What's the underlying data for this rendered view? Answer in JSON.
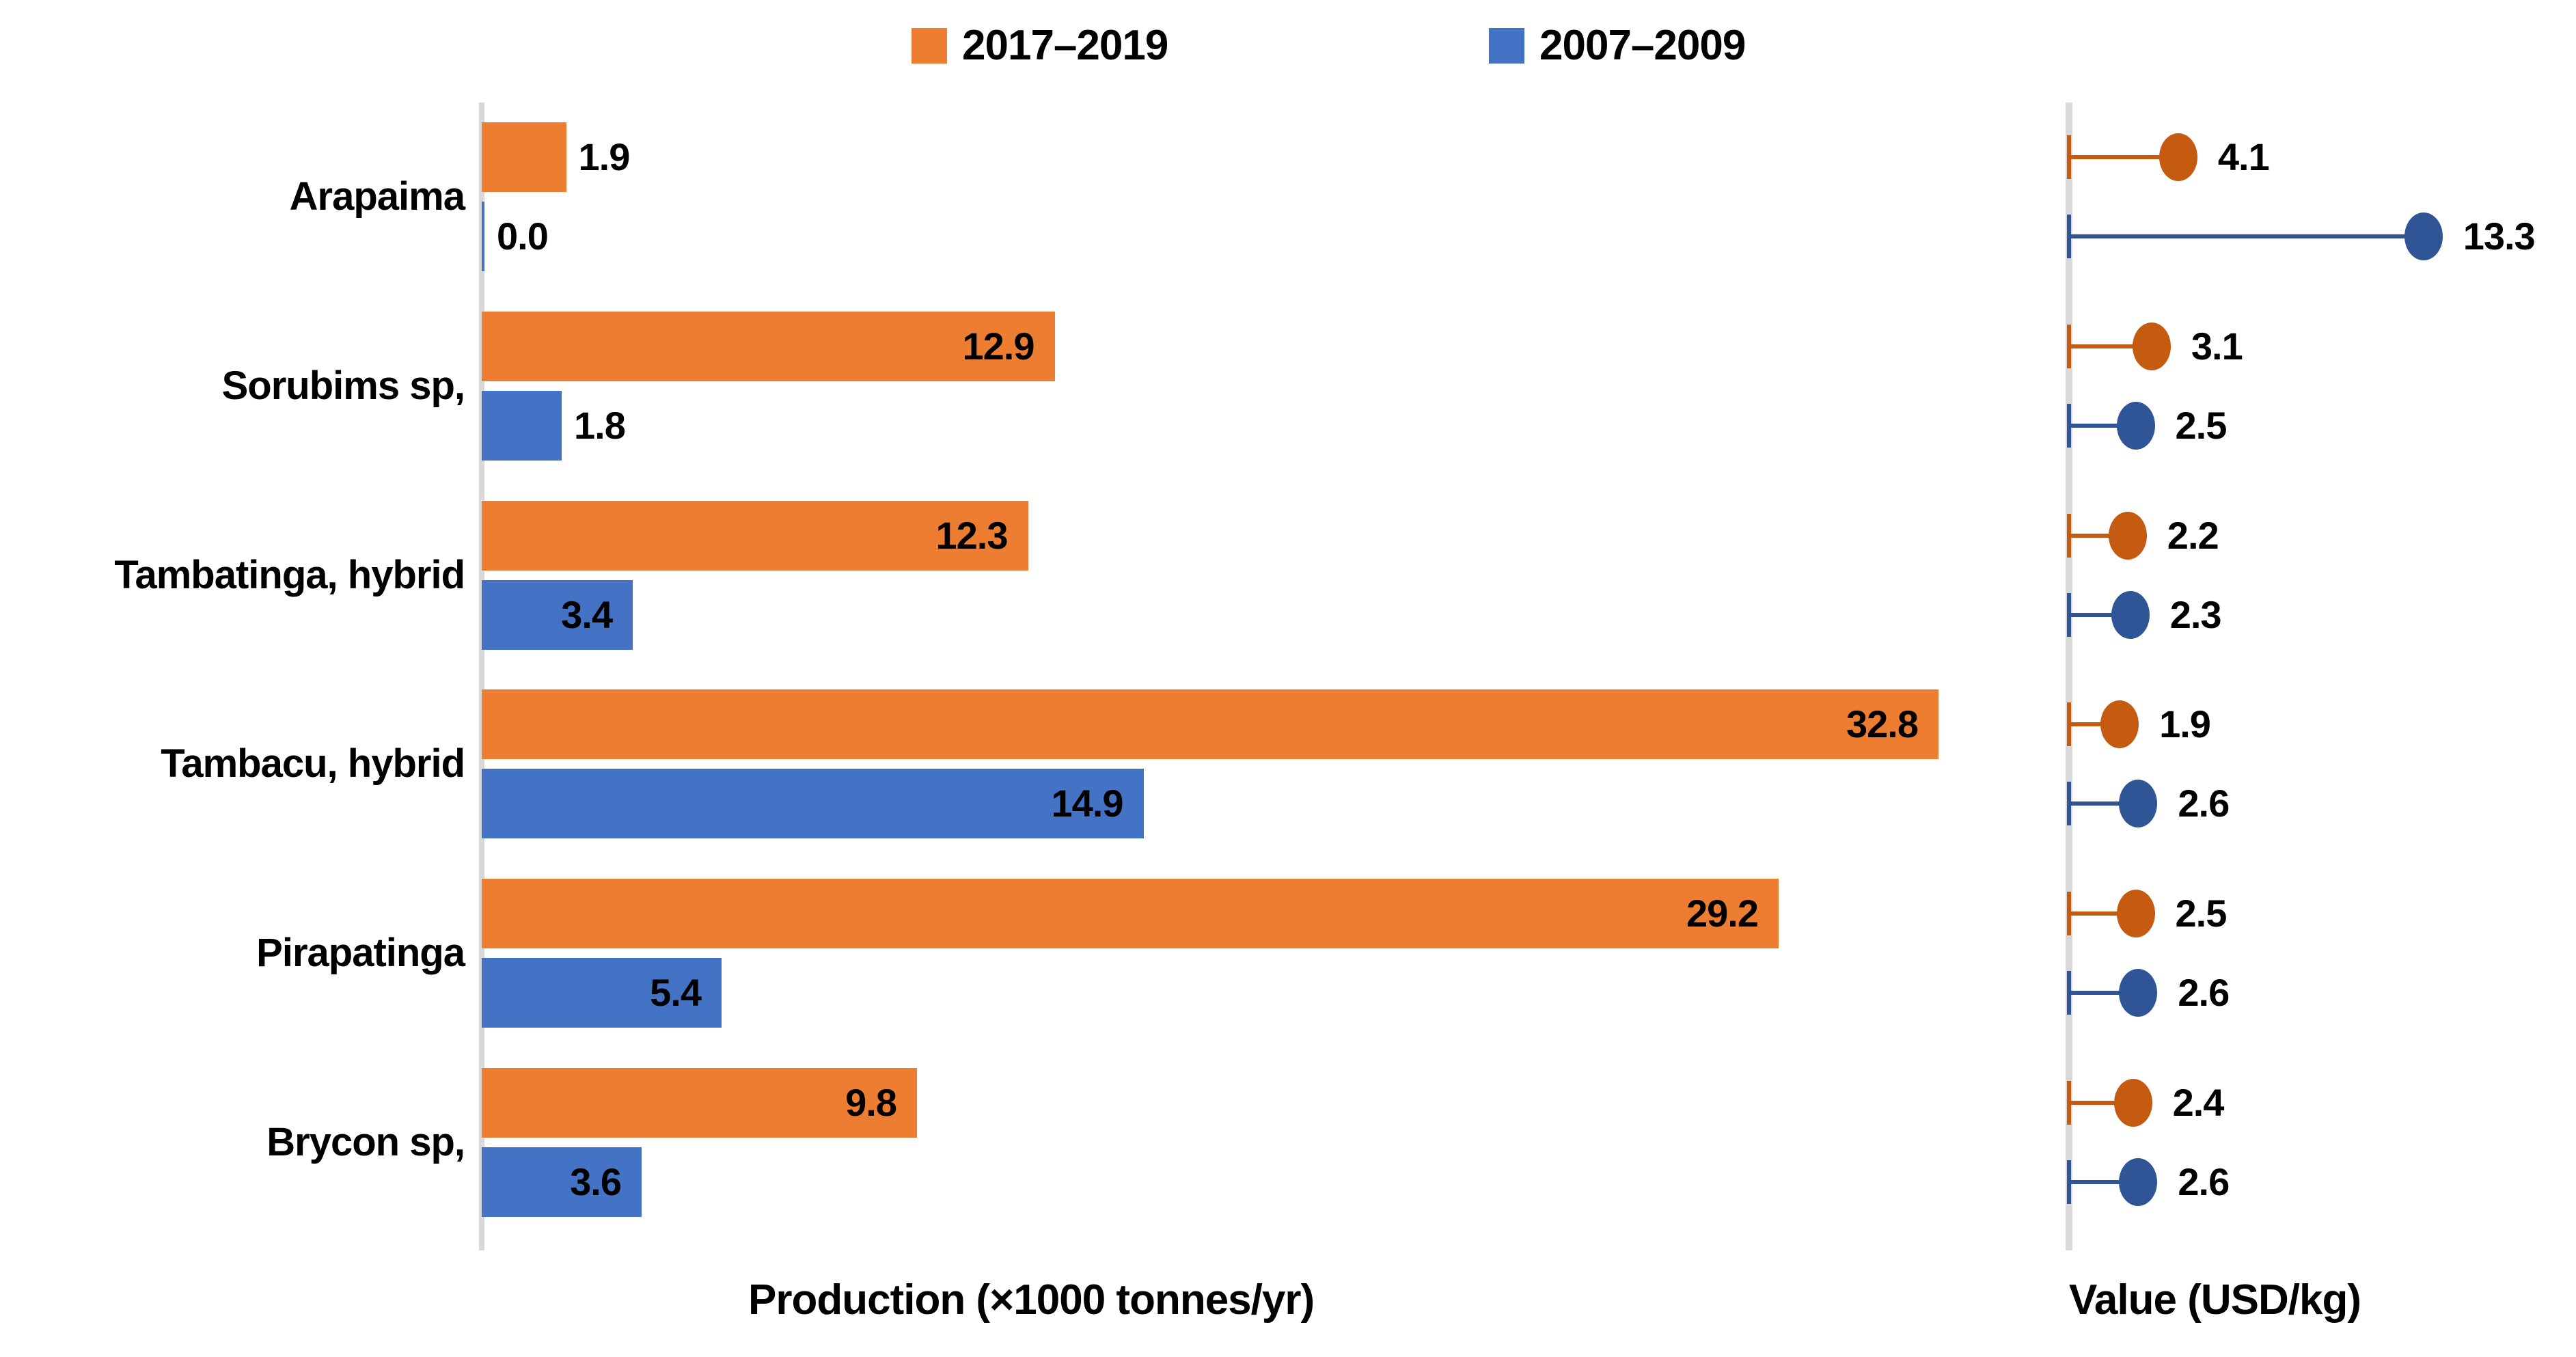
{
  "legend": {
    "items": [
      {
        "label": "2017–2019",
        "color": "#ED7D31"
      },
      {
        "label": "2007–2009",
        "color": "#4472C4"
      }
    ]
  },
  "chart_data": [
    {
      "type": "bar",
      "orientation": "horizontal",
      "title": "",
      "categories": [
        "Arapaima",
        "Sorubims sp,",
        "Tambatinga, hybrid",
        "Tambacu, hybrid",
        "Pirapatinga",
        "Brycon sp,"
      ],
      "series": [
        {
          "name": "2017–2019",
          "color": "#ED7D31",
          "values": [
            1.9,
            12.9,
            12.3,
            32.8,
            29.2,
            9.8
          ]
        },
        {
          "name": "2007–2009",
          "color": "#4472C4",
          "values": [
            0.0,
            1.8,
            3.4,
            14.9,
            5.4,
            3.6
          ]
        }
      ],
      "xlabel": "Production (×1000 tonnes/yr)",
      "ylabel": "",
      "xlim": [
        0,
        34
      ],
      "grid": false,
      "data_labels": true,
      "legend_position": "top"
    },
    {
      "type": "scatter",
      "style": "lollipop",
      "title": "",
      "categories": [
        "Arapaima",
        "Sorubims sp,",
        "Tambatinga, hybrid",
        "Tambacu, hybrid",
        "Pirapatinga",
        "Brycon sp,"
      ],
      "series": [
        {
          "name": "2017–2019",
          "color": "#C55A11",
          "values": [
            4.1,
            3.1,
            2.2,
            1.9,
            2.5,
            2.4
          ]
        },
        {
          "name": "2007–2009",
          "color": "#2F5597",
          "values": [
            13.3,
            2.5,
            2.3,
            2.6,
            2.6,
            2.6
          ]
        }
      ],
      "xlabel": "Value (USD/kg)",
      "ylabel": "",
      "xlim": [
        0,
        19
      ],
      "grid": false,
      "data_labels": true,
      "legend_position": "none"
    }
  ]
}
